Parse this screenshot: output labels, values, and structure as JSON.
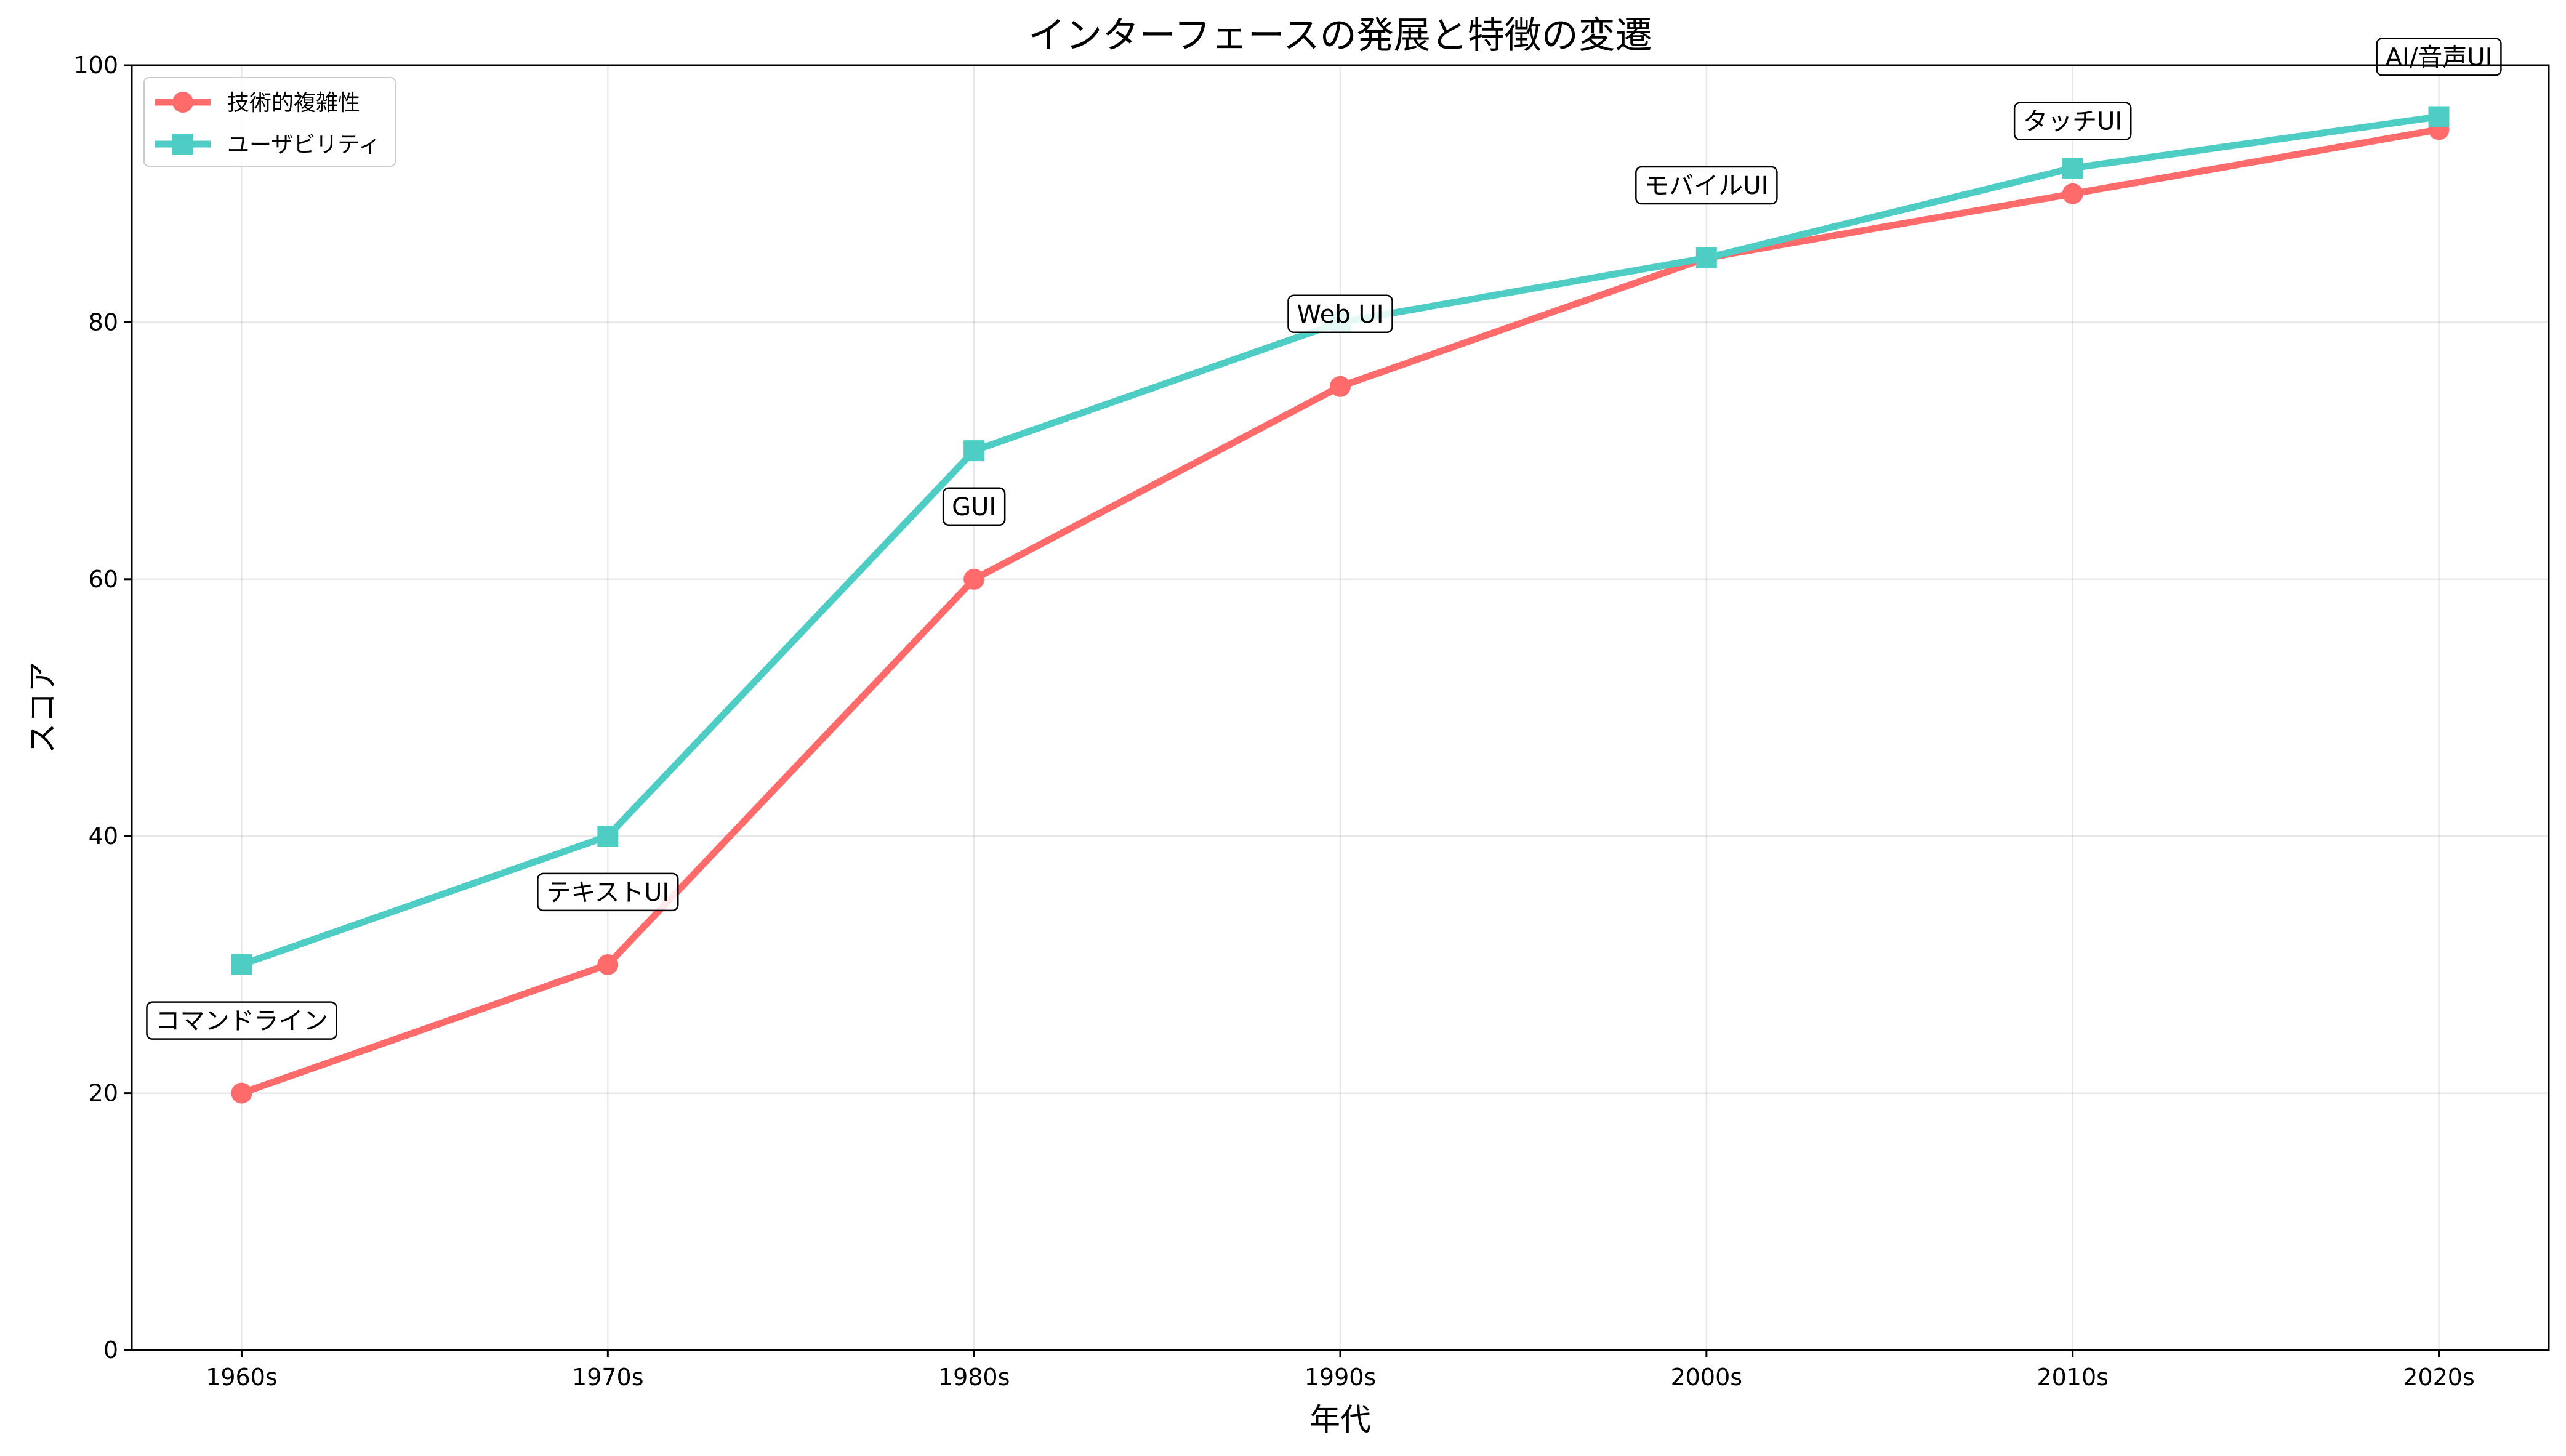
{
  "chart_data": {
    "type": "line",
    "title": "インターフェースの発展と特徴の変遷",
    "xlabel": "年代",
    "ylabel": "スコア",
    "categories": [
      "1960s",
      "1970s",
      "1980s",
      "1990s",
      "2000s",
      "2010s",
      "2020s"
    ],
    "series": [
      {
        "name": "技術的複雑性",
        "color": "#ff6b6b",
        "marker": "circle",
        "values": [
          20,
          30,
          60,
          75,
          85,
          90,
          95
        ]
      },
      {
        "name": "ユーザビリティ",
        "color": "#4ecdc4",
        "marker": "square",
        "values": [
          30,
          40,
          70,
          80,
          85,
          92,
          96
        ]
      }
    ],
    "annotations": [
      {
        "label": "コマンドライン",
        "category": "1960s"
      },
      {
        "label": "テキストUI",
        "category": "1970s"
      },
      {
        "label": "GUI",
        "category": "1980s"
      },
      {
        "label": "Web UI",
        "category": "1990s"
      },
      {
        "label": "モバイルUI",
        "category": "2000s"
      },
      {
        "label": "タッチUI",
        "category": "2010s"
      },
      {
        "label": "AI/音声UI",
        "category": "2020s"
      }
    ],
    "ylim": [
      0,
      100
    ],
    "yticks": [
      0,
      20,
      40,
      60,
      80,
      100
    ],
    "grid": true,
    "legend_position": "top-left"
  }
}
